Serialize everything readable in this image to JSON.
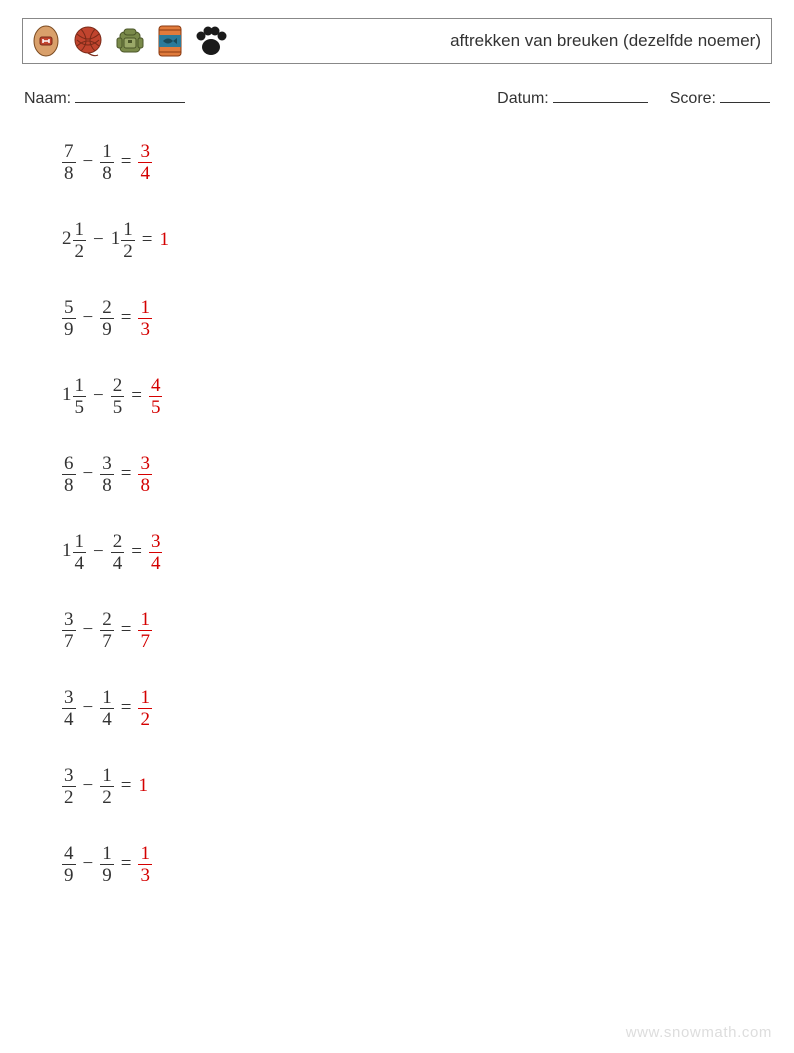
{
  "header": {
    "title": "aftrekken van breuken (dezelfde noemer)",
    "icons": [
      "tag-icon",
      "yarn-ball-icon",
      "backpack-icon",
      "fish-can-icon",
      "paw-icon"
    ]
  },
  "meta": {
    "name_label": "Naam:",
    "date_label": "Datum:",
    "score_label": "Score:"
  },
  "style": {
    "text_color": "#333333",
    "answer_color": "#d40000",
    "border_color": "#888888",
    "watermark_color": "#dddddd",
    "font_size_problems": 19,
    "font_size_title": 17,
    "row_gap": 26
  },
  "problems": [
    {
      "a": {
        "w": null,
        "n": "7",
        "d": "8"
      },
      "b": {
        "w": null,
        "n": "1",
        "d": "8"
      },
      "ans": {
        "w": null,
        "n": "3",
        "d": "4"
      }
    },
    {
      "a": {
        "w": "2",
        "n": "1",
        "d": "2"
      },
      "b": {
        "w": "1",
        "n": "1",
        "d": "2"
      },
      "ans": {
        "w": "1",
        "n": null,
        "d": null
      }
    },
    {
      "a": {
        "w": null,
        "n": "5",
        "d": "9"
      },
      "b": {
        "w": null,
        "n": "2",
        "d": "9"
      },
      "ans": {
        "w": null,
        "n": "1",
        "d": "3"
      }
    },
    {
      "a": {
        "w": "1",
        "n": "1",
        "d": "5"
      },
      "b": {
        "w": null,
        "n": "2",
        "d": "5"
      },
      "ans": {
        "w": null,
        "n": "4",
        "d": "5"
      }
    },
    {
      "a": {
        "w": null,
        "n": "6",
        "d": "8"
      },
      "b": {
        "w": null,
        "n": "3",
        "d": "8"
      },
      "ans": {
        "w": null,
        "n": "3",
        "d": "8"
      }
    },
    {
      "a": {
        "w": "1",
        "n": "1",
        "d": "4"
      },
      "b": {
        "w": null,
        "n": "2",
        "d": "4"
      },
      "ans": {
        "w": null,
        "n": "3",
        "d": "4"
      }
    },
    {
      "a": {
        "w": null,
        "n": "3",
        "d": "7"
      },
      "b": {
        "w": null,
        "n": "2",
        "d": "7"
      },
      "ans": {
        "w": null,
        "n": "1",
        "d": "7"
      }
    },
    {
      "a": {
        "w": null,
        "n": "3",
        "d": "4"
      },
      "b": {
        "w": null,
        "n": "1",
        "d": "4"
      },
      "ans": {
        "w": null,
        "n": "1",
        "d": "2"
      }
    },
    {
      "a": {
        "w": null,
        "n": "3",
        "d": "2"
      },
      "b": {
        "w": null,
        "n": "1",
        "d": "2"
      },
      "ans": {
        "w": "1",
        "n": null,
        "d": null
      }
    },
    {
      "a": {
        "w": null,
        "n": "4",
        "d": "9"
      },
      "b": {
        "w": null,
        "n": "1",
        "d": "9"
      },
      "ans": {
        "w": null,
        "n": "1",
        "d": "3"
      }
    }
  ],
  "operator": "−",
  "equals": "=",
  "watermark": "www.snowmath.com"
}
